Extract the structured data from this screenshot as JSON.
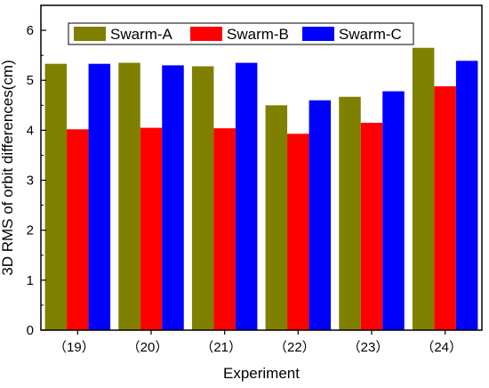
{
  "chart_data": {
    "type": "bar",
    "title": "",
    "xlabel": "Experiment",
    "ylabel": "3D RMS of orbit differences(cm)",
    "categories": [
      "（19）",
      "（20）",
      "（21）",
      "（22）",
      "（23）",
      "（24）"
    ],
    "ylim": [
      0,
      6.5
    ],
    "yticks": [
      0,
      1,
      2,
      3,
      4,
      5,
      6
    ],
    "grid": false,
    "legend": "top",
    "series": [
      {
        "name": "Swarm-A",
        "color": "#808000",
        "values": [
          5.33,
          5.35,
          5.28,
          4.5,
          4.67,
          5.65
        ]
      },
      {
        "name": "Swarm-B",
        "color": "#ff0000",
        "values": [
          4.02,
          4.05,
          4.04,
          3.93,
          4.15,
          4.88
        ]
      },
      {
        "name": "Swarm-C",
        "color": "#0000ff",
        "values": [
          5.33,
          5.3,
          5.35,
          4.6,
          4.78,
          5.39
        ]
      }
    ]
  }
}
